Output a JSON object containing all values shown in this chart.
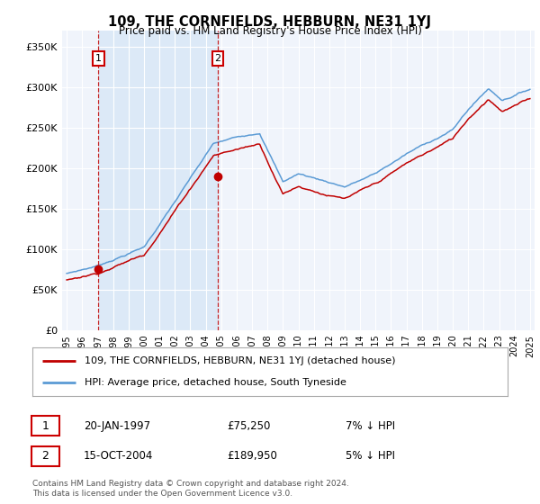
{
  "title": "109, THE CORNFIELDS, HEBBURN, NE31 1YJ",
  "subtitle": "Price paid vs. HM Land Registry's House Price Index (HPI)",
  "legend_line1": "109, THE CORNFIELDS, HEBBURN, NE31 1YJ (detached house)",
  "legend_line2": "HPI: Average price, detached house, South Tyneside",
  "footnote": "Contains HM Land Registry data © Crown copyright and database right 2024.\nThis data is licensed under the Open Government Licence v3.0.",
  "sale1_date": "20-JAN-1997",
  "sale1_price": 75250,
  "sale2_date": "15-OCT-2004",
  "sale2_price": 189950,
  "sale1_hpi_diff": "7% ↓ HPI",
  "sale2_hpi_diff": "5% ↓ HPI",
  "sale1_x": 1997.05,
  "sale2_x": 2004.79,
  "hpi_color": "#5b9bd5",
  "price_color": "#c00000",
  "shade_color": "#dce9f7",
  "bg_color": "#f0f4fb",
  "grid_color": "#ffffff",
  "ylim": [
    0,
    370000
  ],
  "xlim_start": 1994.7,
  "xlim_end": 2025.3,
  "yticks": [
    0,
    50000,
    100000,
    150000,
    200000,
    250000,
    300000,
    350000
  ],
  "xticks": [
    1995,
    1996,
    1997,
    1998,
    1999,
    2000,
    2001,
    2002,
    2003,
    2004,
    2005,
    2006,
    2007,
    2008,
    2009,
    2010,
    2011,
    2012,
    2013,
    2014,
    2015,
    2016,
    2017,
    2018,
    2019,
    2020,
    2021,
    2022,
    2023,
    2024,
    2025
  ]
}
